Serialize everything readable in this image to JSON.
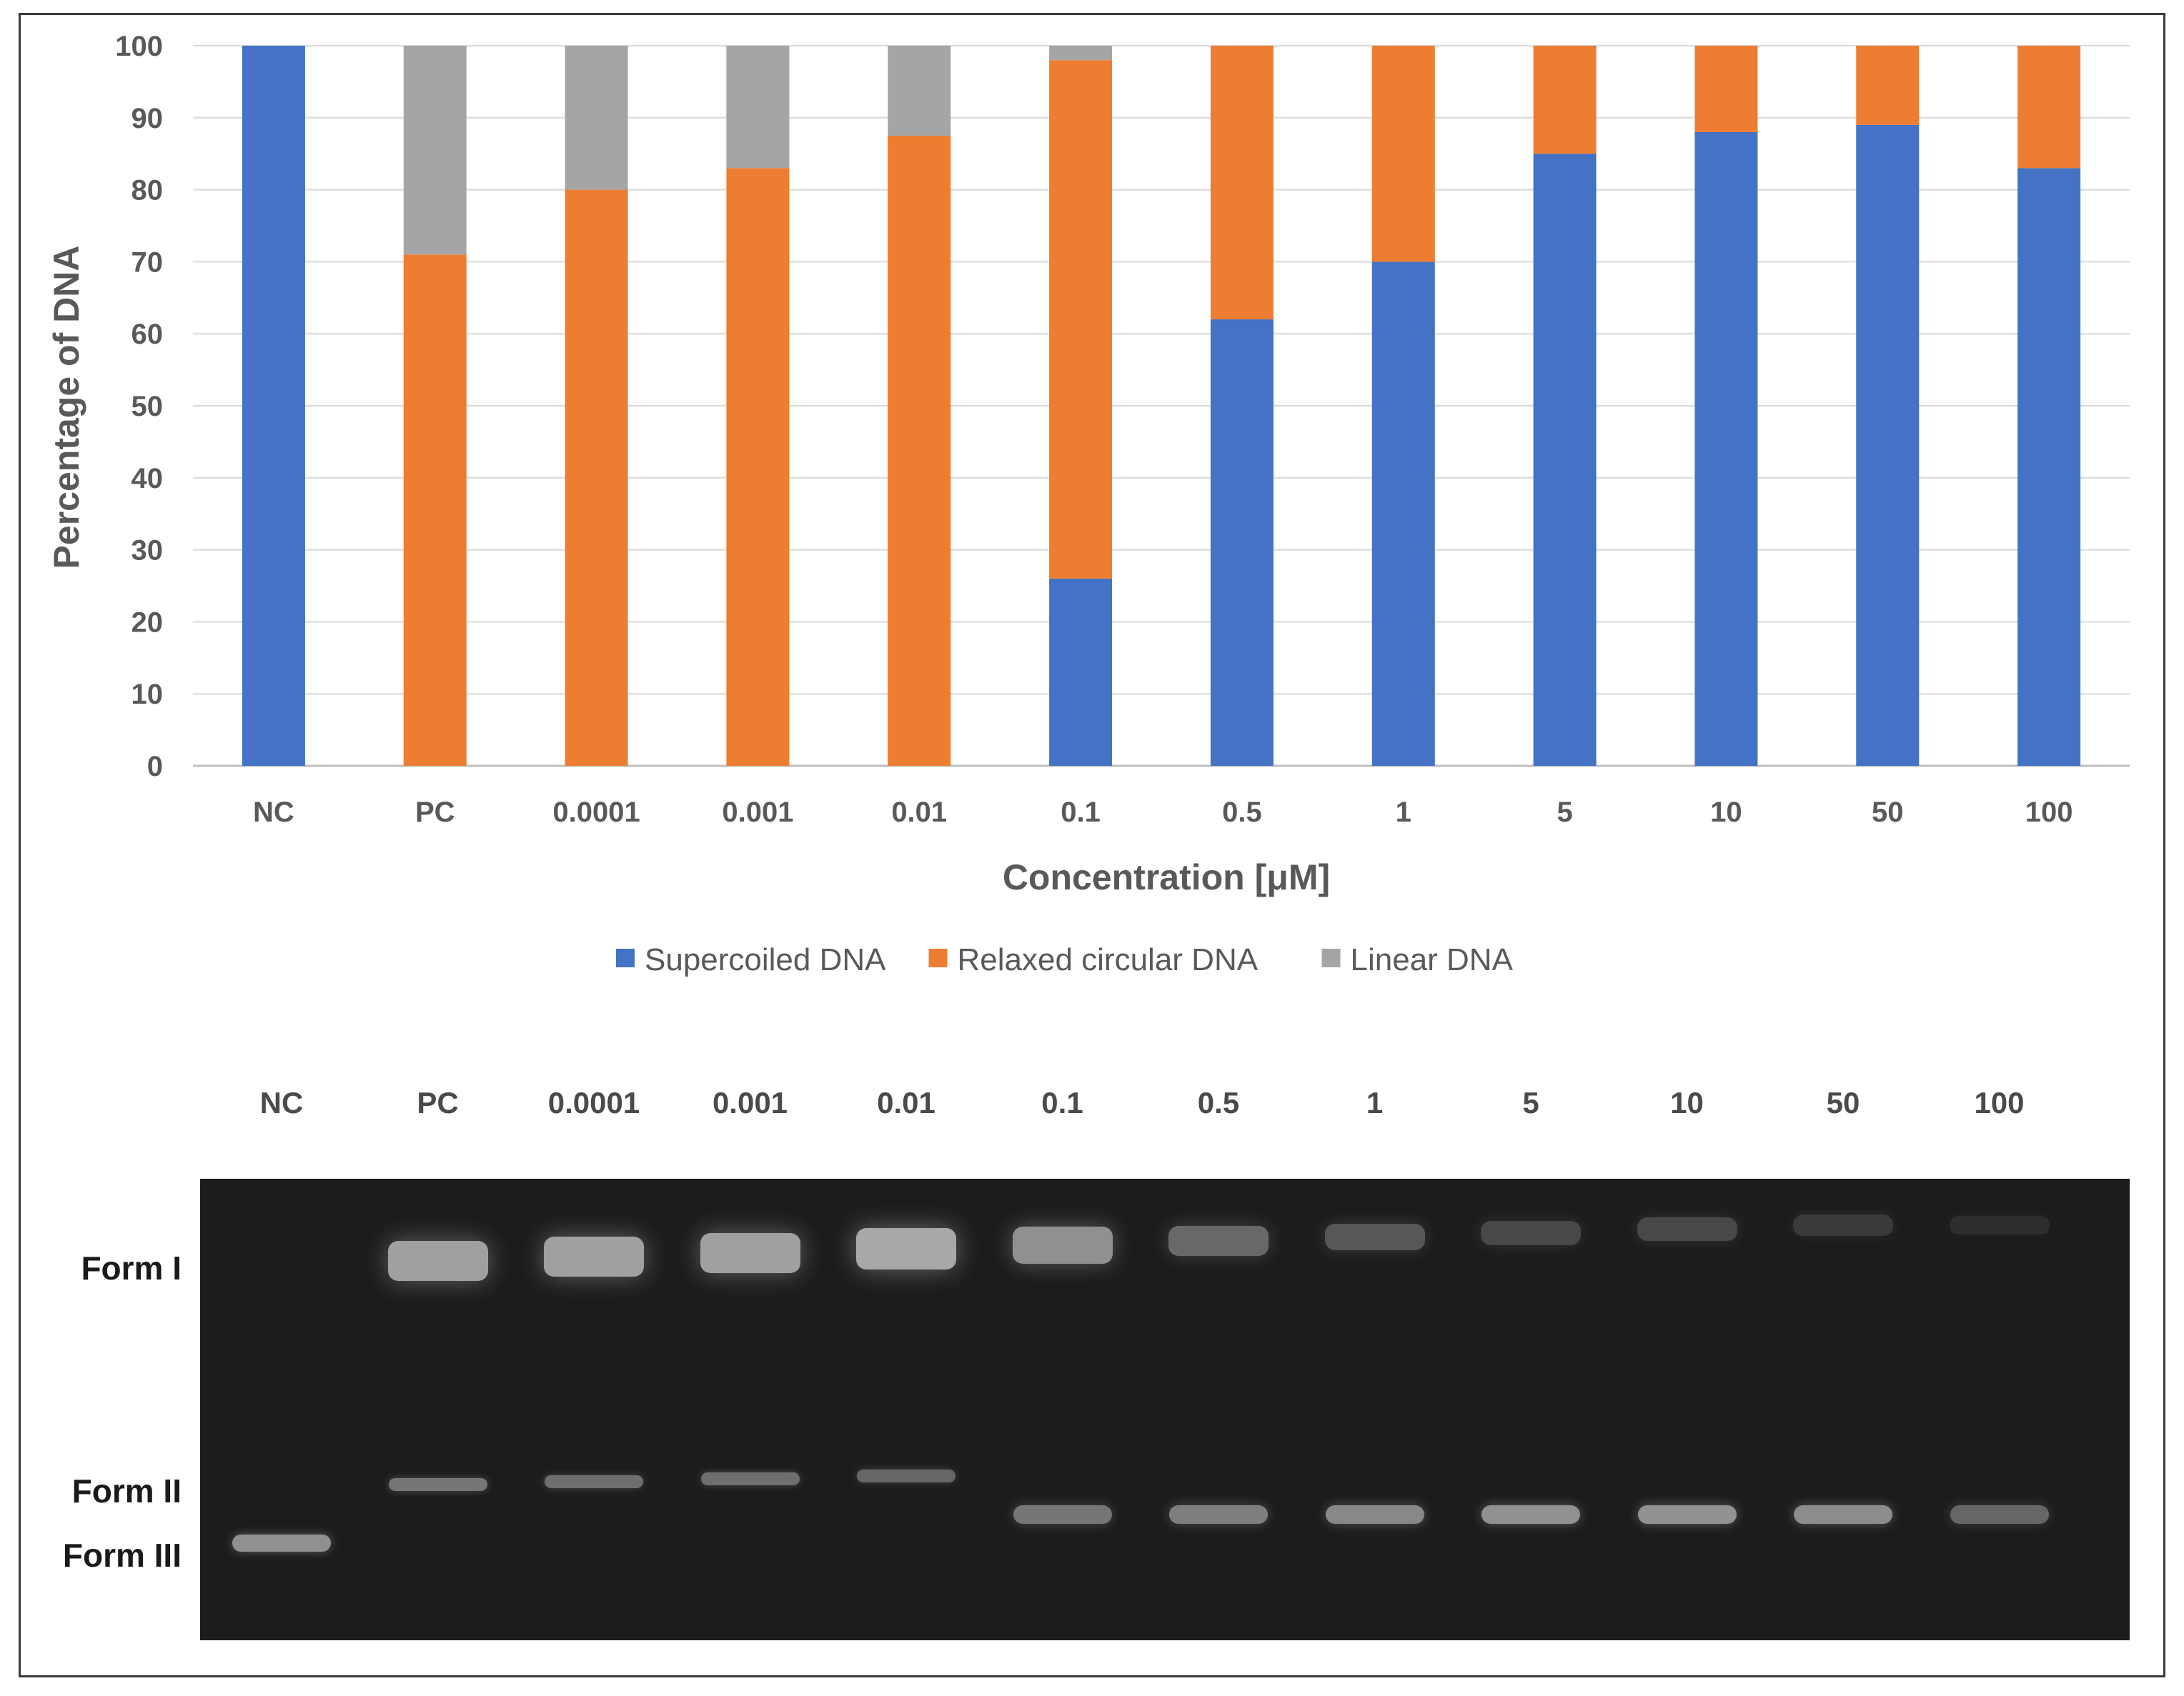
{
  "chart_data": {
    "type": "bar",
    "stacked": true,
    "title": "",
    "xlabel": "Concentration [μM]",
    "ylabel": "Percentage of DNA",
    "ylim": [
      0,
      100
    ],
    "yticks": [
      "0",
      "10",
      "20",
      "30",
      "40",
      "50",
      "60",
      "70",
      "80",
      "90",
      "100"
    ],
    "grid": true,
    "legend_position": "bottom",
    "categories": [
      "NC",
      "PC",
      "0.0001",
      "0.001",
      "0.01",
      "0.1",
      "0.5",
      "1",
      "5",
      "10",
      "50",
      "100"
    ],
    "series": [
      {
        "name": "Supercoiled DNA",
        "color": "#4472c4",
        "values": [
          100,
          0,
          0,
          0,
          0,
          26,
          62,
          70,
          85,
          88,
          89,
          83
        ]
      },
      {
        "name": "Relaxed circular DNA",
        "color": "#ed7d31",
        "values": [
          0,
          71,
          80,
          83,
          87.5,
          72,
          38,
          30,
          15,
          12,
          11,
          17
        ]
      },
      {
        "name": "Linear DNA",
        "color": "#a5a5a5",
        "values": [
          0,
          29,
          20,
          17,
          12.5,
          2,
          0,
          0,
          0,
          0,
          0,
          0
        ]
      }
    ]
  },
  "gel": {
    "lane_labels": [
      "NC",
      "PC",
      "0.0001",
      "0.001",
      "0.01",
      "0.1",
      "0.5",
      "1",
      "5",
      "10",
      "50",
      "100"
    ],
    "form_labels": {
      "form1": "Form I",
      "form2": "Form II",
      "form3": "Form III"
    },
    "band_intensity": {
      "form1": [
        0.0,
        0.85,
        0.85,
        0.85,
        0.9,
        0.75,
        0.5,
        0.38,
        0.28,
        0.28,
        0.2,
        0.12
      ],
      "form2": [
        0.0,
        0.55,
        0.5,
        0.5,
        0.45,
        0.0,
        0.0,
        0.0,
        0.0,
        0.0,
        0.0,
        0.0
      ],
      "form3": [
        0.7,
        0.0,
        0.0,
        0.0,
        0.0,
        0.55,
        0.6,
        0.65,
        0.7,
        0.72,
        0.68,
        0.45
      ]
    },
    "colors": {
      "background": "#1c1c1c",
      "band": "#ffffff"
    }
  }
}
